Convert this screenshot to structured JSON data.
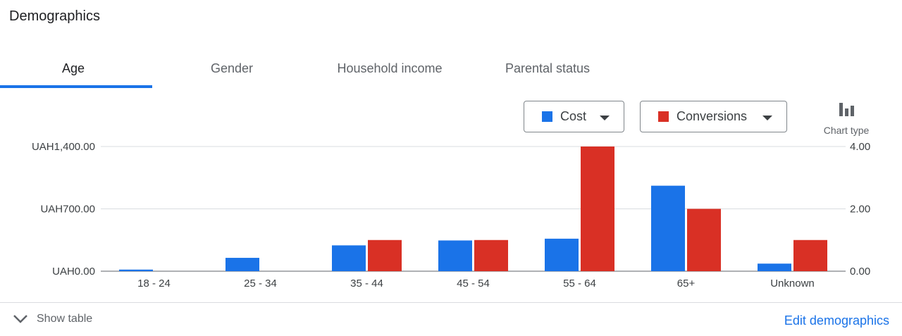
{
  "card": {
    "title": "Demographics"
  },
  "tabs": [
    {
      "label": "Age",
      "active": true
    },
    {
      "label": "Gender",
      "active": false
    },
    {
      "label": "Household income",
      "active": false
    },
    {
      "label": "Parental status",
      "active": false
    }
  ],
  "metrics": {
    "primary": {
      "label": "Cost",
      "color": "#1a73e8"
    },
    "secondary": {
      "label": "Conversions",
      "color": "#d93025"
    }
  },
  "chart_type_button": {
    "label": "Chart type",
    "icon": "bar-chart-icon"
  },
  "chart_data": {
    "type": "bar",
    "categories": [
      "18 - 24",
      "25 - 34",
      "35 - 44",
      "45 - 54",
      "55 - 64",
      "65+",
      "Unknown"
    ],
    "series": [
      {
        "name": "Cost",
        "axis": "left",
        "color": "#1a73e8",
        "values": [
          18,
          150,
          290,
          345,
          365,
          960,
          85
        ]
      },
      {
        "name": "Conversions",
        "axis": "right",
        "color": "#d93025",
        "values": [
          0,
          0,
          1,
          1,
          4,
          2,
          1
        ]
      }
    ],
    "y_left": {
      "ticks": [
        "UAH0.00",
        "UAH700.00",
        "UAH1,400.00"
      ],
      "range": [
        0,
        1400
      ]
    },
    "y_right": {
      "ticks": [
        "0.00",
        "2.00",
        "4.00"
      ],
      "range": [
        0,
        4
      ]
    },
    "grid": true
  },
  "footer": {
    "show_table_label": "Show table",
    "edit_label": "Edit demographics"
  },
  "colors": {
    "accent": "#1a73e8"
  }
}
